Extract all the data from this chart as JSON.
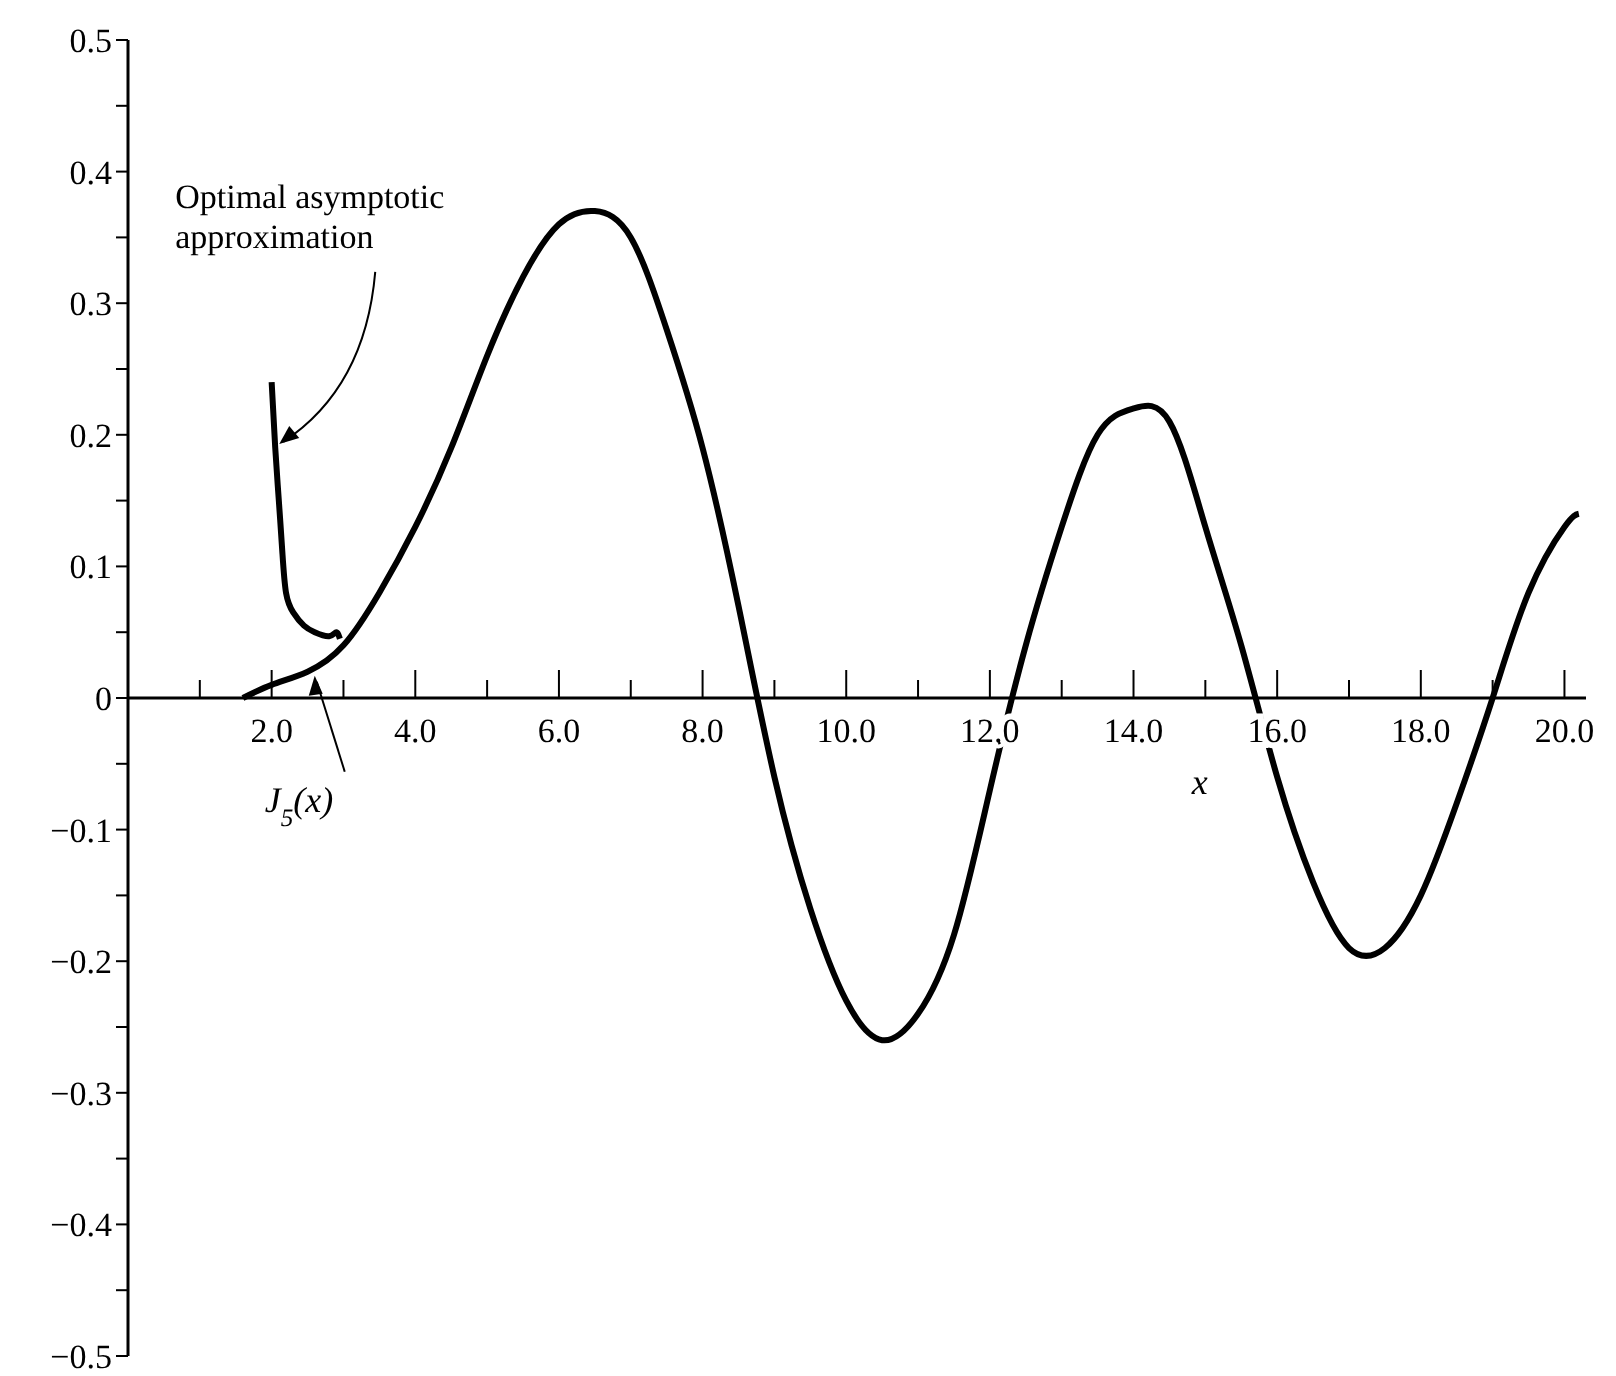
{
  "chart_data": {
    "type": "line",
    "xlabel": "x",
    "xlim": [
      0,
      20.3
    ],
    "ylim": [
      -0.5,
      0.5
    ],
    "xticks": [
      {
        "value": 1,
        "label": null
      },
      {
        "value": 2,
        "label": "2.0"
      },
      {
        "value": 3,
        "label": null
      },
      {
        "value": 4,
        "label": "4.0"
      },
      {
        "value": 5,
        "label": null
      },
      {
        "value": 6,
        "label": "6.0"
      },
      {
        "value": 7,
        "label": null
      },
      {
        "value": 8,
        "label": "8.0"
      },
      {
        "value": 9,
        "label": null
      },
      {
        "value": 10,
        "label": "10.0"
      },
      {
        "value": 11,
        "label": null
      },
      {
        "value": 12,
        "label": "12.0"
      },
      {
        "value": 13,
        "label": null
      },
      {
        "value": 14,
        "label": "14.0"
      },
      {
        "value": 15,
        "label": null
      },
      {
        "value": 16,
        "label": "16.0"
      },
      {
        "value": 17,
        "label": null
      },
      {
        "value": 18,
        "label": "18.0"
      },
      {
        "value": 19,
        "label": null
      },
      {
        "value": 20,
        "label": "20.0"
      }
    ],
    "yticks": [
      {
        "value": -0.5,
        "label": "−0.5"
      },
      {
        "value": -0.45,
        "label": null
      },
      {
        "value": -0.4,
        "label": "−0.4"
      },
      {
        "value": -0.35,
        "label": null
      },
      {
        "value": -0.3,
        "label": "−0.3"
      },
      {
        "value": -0.25,
        "label": null
      },
      {
        "value": -0.2,
        "label": "−0.2"
      },
      {
        "value": -0.15,
        "label": null
      },
      {
        "value": -0.1,
        "label": "−0.1"
      },
      {
        "value": -0.05,
        "label": null
      },
      {
        "value": 0,
        "label": "0"
      },
      {
        "value": 0.05,
        "label": null
      },
      {
        "value": 0.1,
        "label": "0.1"
      },
      {
        "value": 0.15,
        "label": null
      },
      {
        "value": 0.2,
        "label": "0.2"
      },
      {
        "value": 0.25,
        "label": null
      },
      {
        "value": 0.3,
        "label": "0.3"
      },
      {
        "value": 0.35,
        "label": null
      },
      {
        "value": 0.4,
        "label": "0.4"
      },
      {
        "value": 0.45,
        "label": null
      },
      {
        "value": 0.5,
        "label": "0.5"
      }
    ],
    "marker": "none",
    "line_style": "solid",
    "series": [
      {
        "color": "#000000",
        "x": [
          1.6,
          2,
          2.5,
          3,
          3.5,
          4,
          4.5,
          5,
          5.5,
          6,
          6.5,
          7,
          7.5,
          8,
          8.5,
          9,
          9.5,
          10,
          10.5,
          11,
          11.5,
          12,
          12.5,
          13,
          13.5,
          14,
          14.5,
          15,
          15.5,
          16,
          16.5,
          17,
          17.5,
          18,
          18.5,
          19,
          19.5,
          20,
          20.2
        ],
        "values": [
          0,
          0.01,
          0.02,
          0.04,
          0.08,
          0.13,
          0.19,
          0.26,
          0.32,
          0.36,
          0.37,
          0.35,
          0.28,
          0.19,
          0.07,
          -0.06,
          -0.16,
          -0.23,
          -0.26,
          -0.24,
          -0.18,
          -0.07,
          0.04,
          0.13,
          0.2,
          0.22,
          0.21,
          0.13,
          0.04,
          -0.06,
          -0.14,
          -0.19,
          -0.19,
          -0.15,
          -0.08,
          0,
          0.08,
          0.13,
          0.14
        ]
      },
      {
        "color": "#000000",
        "x": [
          2,
          2.05,
          2.1,
          2.15,
          2.2,
          2.3,
          2.45,
          2.6,
          2.8,
          2.9,
          2.95
        ],
        "values": [
          0.24,
          0.19,
          0.15,
          0.11,
          0.08,
          0.065,
          0.055,
          0.05,
          0.047,
          0.05,
          0.045
        ]
      }
    ],
    "annotations": [
      {
        "text": "Optimal asymptotic approximation",
        "x": 2.05,
        "y": 0.19
      },
      {
        "text": "J$_{5}$(x)",
        "x": 2.6,
        "y": 0.02
      }
    ]
  }
}
